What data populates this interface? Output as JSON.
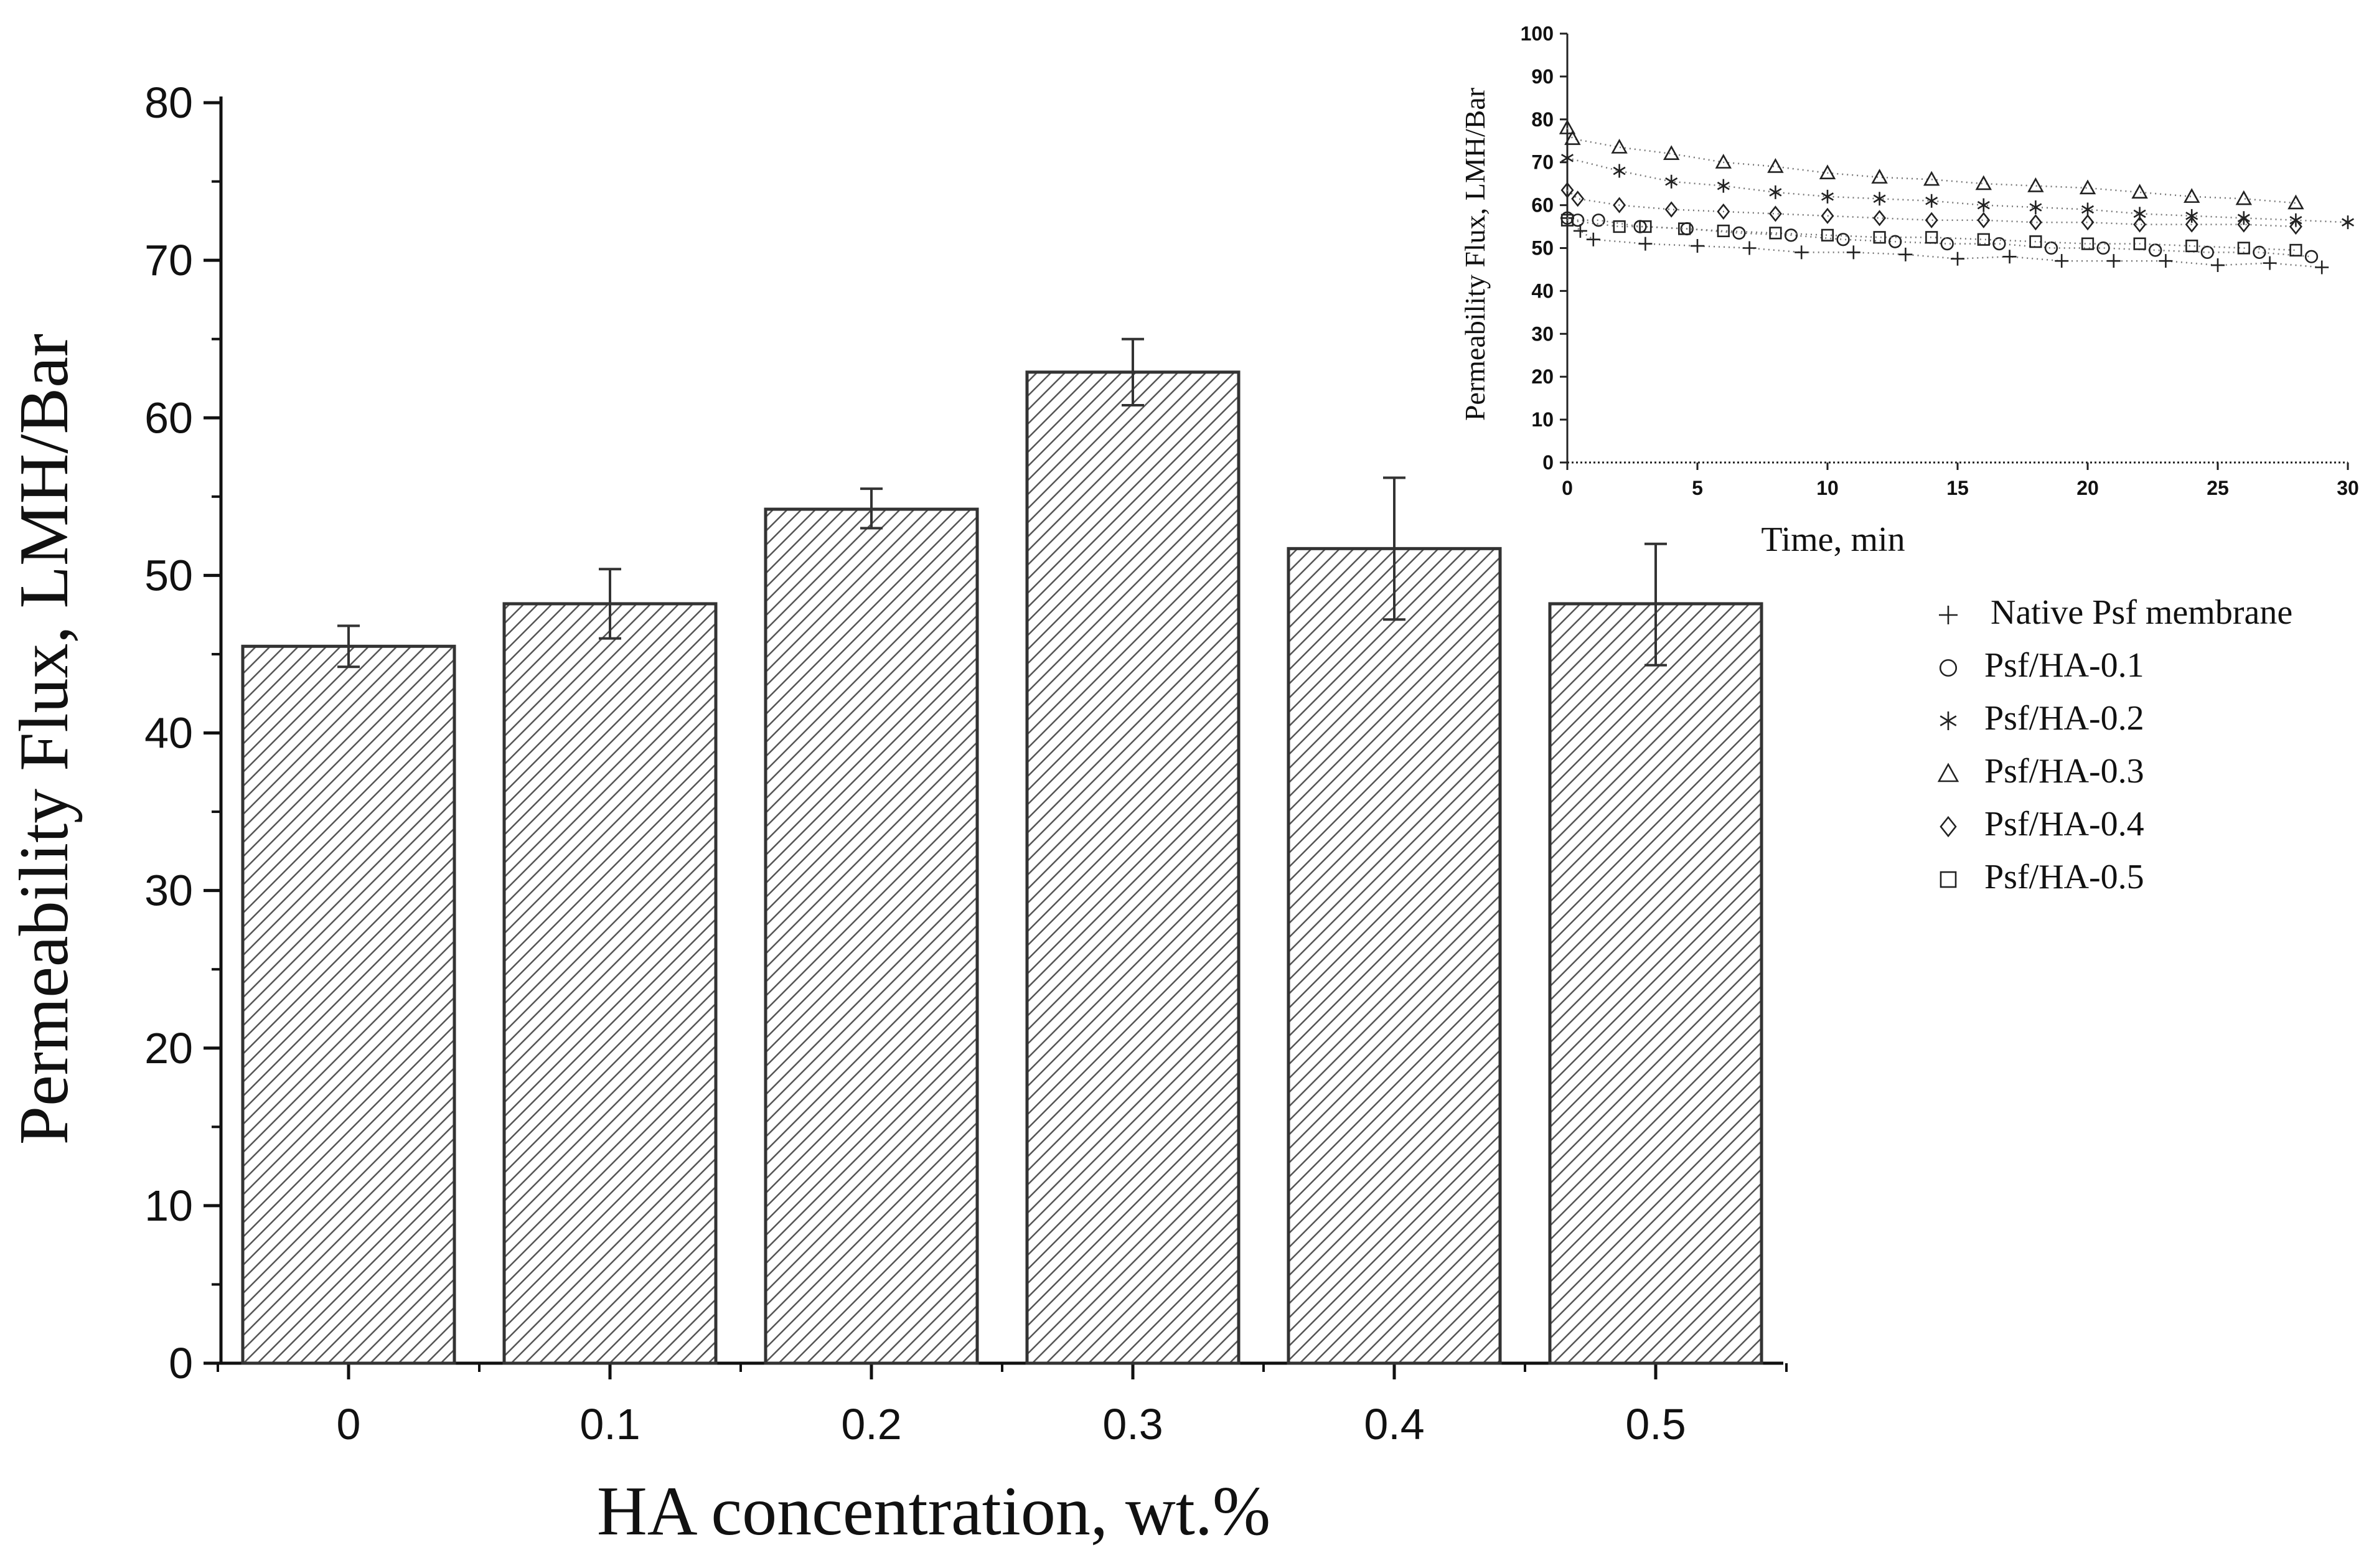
{
  "chart_data": [
    {
      "type": "bar",
      "title": "",
      "xlabel": "HA concentration, wt.%",
      "ylabel": "Permeability Flux, LMH/Bar",
      "categories": [
        "0",
        "0.1",
        "0.2",
        "0.3",
        "0.4",
        "0.5"
      ],
      "values": [
        45.5,
        48.2,
        54.2,
        62.9,
        51.7,
        48.2
      ],
      "error_low": [
        44.2,
        46.0,
        53.0,
        60.8,
        47.2,
        44.3
      ],
      "error_high": [
        46.8,
        50.4,
        55.5,
        65.0,
        56.2,
        52.0
      ],
      "ylim": [
        0,
        80
      ],
      "yticks": [
        "0",
        "10",
        "20",
        "30",
        "40",
        "50",
        "60",
        "70",
        "80"
      ],
      "bar_fill": "diagonal-hatch",
      "colors": {
        "bar_edge": "#333333",
        "hatch": "#555555",
        "axis": "#111111"
      }
    },
    {
      "type": "scatter",
      "title": "",
      "xlabel": "Time, min",
      "ylabel": "Permeability Flux, LMH/Bar",
      "xlim": [
        0,
        30
      ],
      "ylim": [
        0,
        100
      ],
      "xticks": [
        "0",
        "5",
        "10",
        "15",
        "20",
        "25",
        "30"
      ],
      "yticks": [
        "0",
        "10",
        "20",
        "30",
        "40",
        "50",
        "60",
        "70",
        "80",
        "90",
        "100"
      ],
      "trendlines": "dotted",
      "legend_position": "right",
      "series": [
        {
          "name": "Native Psf membrane",
          "marker": "plus",
          "x": [
            0,
            0.5,
            1,
            3,
            5,
            7,
            9,
            11,
            13,
            15,
            17,
            19,
            21,
            23,
            25,
            27,
            29
          ],
          "y": [
            57,
            54,
            52,
            51,
            50.5,
            50,
            49,
            49,
            48.5,
            47.5,
            48,
            47,
            47,
            47,
            46,
            46.5,
            45.5
          ]
        },
        {
          "name": "Psf/HA-0.1",
          "marker": "circle",
          "x": [
            0,
            0.4,
            1.2,
            2.8,
            4.6,
            6.6,
            8.6,
            10.6,
            12.6,
            14.6,
            16.6,
            18.6,
            20.6,
            22.6,
            24.6,
            26.6,
            28.6
          ],
          "y": [
            57,
            56.5,
            56.5,
            55,
            54.5,
            53.5,
            53,
            52,
            51.5,
            51,
            51,
            50,
            50,
            49.5,
            49,
            49,
            48
          ]
        },
        {
          "name": "Psf/HA-0.2",
          "marker": "asterisk",
          "x": [
            0,
            2,
            4,
            6,
            8,
            10,
            12,
            14,
            16,
            18,
            20,
            22,
            24,
            26,
            28,
            30
          ],
          "y": [
            71,
            68,
            65.5,
            64.5,
            63,
            62,
            61.5,
            61,
            60,
            59.5,
            59,
            58,
            57.5,
            57,
            56.5,
            56
          ]
        },
        {
          "name": "Psf/HA-0.3",
          "marker": "triangle",
          "x": [
            0,
            0.2,
            2,
            4,
            6,
            8,
            10,
            12,
            14,
            16,
            18,
            20,
            22,
            24,
            26,
            28
          ],
          "y": [
            78,
            75.5,
            73.5,
            72,
            70,
            69,
            67.5,
            66.5,
            66,
            65,
            64.5,
            64,
            63,
            62,
            61.5,
            60.5
          ]
        },
        {
          "name": "Psf/HA-0.4",
          "marker": "diamond",
          "x": [
            0,
            0.4,
            2,
            4,
            6,
            8,
            10,
            12,
            14,
            16,
            18,
            20,
            22,
            24,
            26,
            28
          ],
          "y": [
            63.5,
            61.5,
            60,
            59,
            58.5,
            58,
            57.5,
            57,
            56.5,
            56.5,
            56,
            56,
            55.5,
            55.5,
            55.5,
            55
          ]
        },
        {
          "name": "Psf/HA-0.5",
          "marker": "square",
          "x": [
            0,
            2,
            3,
            4.5,
            6,
            8,
            10,
            12,
            14,
            16,
            18,
            20,
            22,
            24,
            26,
            28
          ],
          "y": [
            56.5,
            55,
            55,
            54.5,
            54,
            53.5,
            53,
            52.5,
            52.5,
            52,
            51.5,
            51,
            51,
            50.5,
            50,
            49.5
          ]
        }
      ]
    }
  ]
}
